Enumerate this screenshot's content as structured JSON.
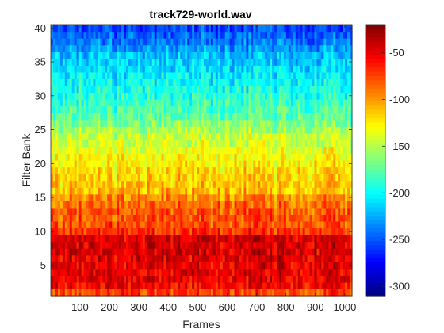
{
  "chart_data": {
    "type": "heatmap",
    "title": "track729-world.wav",
    "xlabel": "Frames",
    "ylabel": "Filter Bank",
    "xlim": [
      0.5,
      1024.5
    ],
    "ylim": [
      0.5,
      40.5
    ],
    "x_ticks": [
      "100",
      "200",
      "300",
      "400",
      "500",
      "600",
      "700",
      "800",
      "900",
      "1000"
    ],
    "y_ticks": [
      "5",
      "10",
      "15",
      "20",
      "25",
      "30",
      "35",
      "40"
    ],
    "colorbar": {
      "colormap": "jet",
      "clim": [
        -310,
        -20
      ],
      "ticks": [
        "-50",
        "-100",
        "-150",
        "-200",
        "-250",
        "-300"
      ]
    },
    "filter_bank_profile_db": {
      "banks": [
        1,
        2,
        3,
        4,
        5,
        6,
        7,
        8,
        9,
        10,
        11,
        12,
        13,
        14,
        15,
        16,
        17,
        18,
        19,
        20,
        21,
        22,
        23,
        24,
        25,
        26,
        27,
        28,
        29,
        30,
        31,
        32,
        33,
        34,
        35,
        36,
        37,
        38,
        39,
        40
      ],
      "mean_level": [
        -75,
        -55,
        -50,
        -50,
        -48,
        -48,
        -45,
        -45,
        -45,
        -70,
        -78,
        -80,
        -82,
        -88,
        -95,
        -110,
        -112,
        -115,
        -120,
        -125,
        -130,
        -135,
        -140,
        -145,
        -155,
        -165,
        -175,
        -180,
        -185,
        -190,
        -195,
        -200,
        -205,
        -210,
        -215,
        -220,
        -230,
        -240,
        -245,
        -255
      ]
    }
  }
}
